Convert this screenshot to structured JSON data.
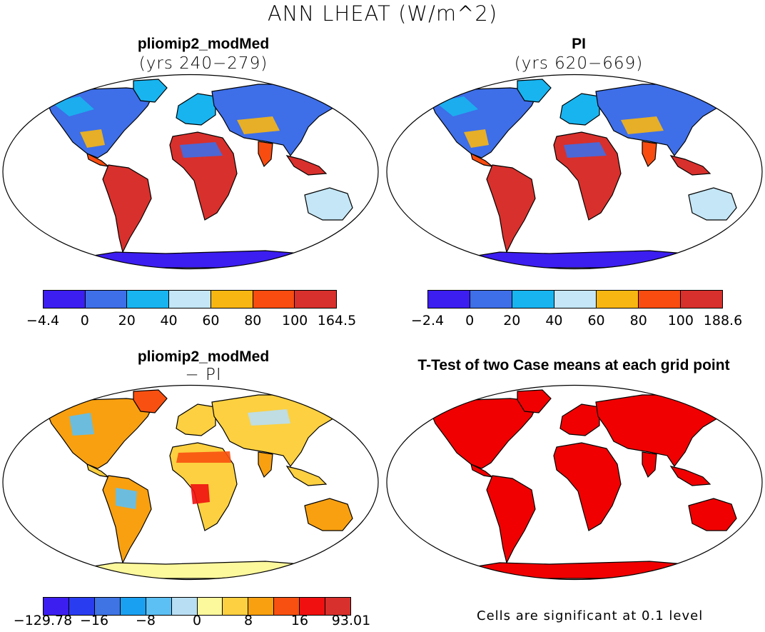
{
  "title": "ANN LHEAT (W/m^2)",
  "chart_data": [
    {
      "type": "heatmap",
      "title": "pliomip2_modMed",
      "subtitle": "(yrs 240−279)",
      "projection": "robinson",
      "colorbar": {
        "labels": [
          "−4.4",
          "0",
          "20",
          "40",
          "60",
          "80",
          "100",
          "164.5"
        ],
        "colors": [
          "#3c1ef0",
          "#3e6ee8",
          "#18b4f0",
          "#c4e6f6",
          "#f8b612",
          "#f84c10",
          "#d8302c"
        ]
      }
    },
    {
      "type": "heatmap",
      "title": "PI",
      "subtitle": "(yrs 620−669)",
      "projection": "robinson",
      "colorbar": {
        "labels": [
          "−2.4",
          "0",
          "20",
          "40",
          "60",
          "80",
          "100",
          "188.6"
        ],
        "colors": [
          "#3c1ef0",
          "#3e6ee8",
          "#18b4f0",
          "#c4e6f6",
          "#f8b612",
          "#f84c10",
          "#d8302c"
        ]
      }
    },
    {
      "type": "heatmap",
      "title": "pliomip2_modMed",
      "subtitle": "− PI",
      "projection": "robinson",
      "colorbar": {
        "labels": [
          "−129.78",
          "−16",
          "−8",
          "0",
          "8",
          "16",
          "93.01"
        ],
        "colors": [
          "#3c1ef0",
          "#2a3cf0",
          "#3e74e4",
          "#1aa0f0",
          "#5cc0f4",
          "#b8def4",
          "#fcf89c",
          "#fcd040",
          "#f8a010",
          "#f85010",
          "#f01010",
          "#d8302c"
        ]
      }
    },
    {
      "type": "heatmap",
      "title": "T-Test of two Case means at each grid point",
      "projection": "robinson",
      "note": "Cells are significant at 0.1 level",
      "significant_color": "#f00000"
    }
  ]
}
